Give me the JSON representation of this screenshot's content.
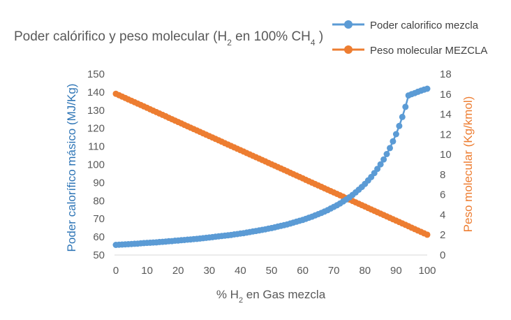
{
  "chart_data": {
    "type": "line",
    "title": {
      "text": "Poder calórifico y peso molecular (H",
      "sub1": "2",
      "mid": " en 100% CH",
      "sub2": "4",
      "end": " )"
    },
    "xlabel": {
      "text": "% H",
      "sub": "2",
      "end": " en Gas mezcla"
    },
    "ylabel_left": "Poder calorífico másico (MJ/Kg)",
    "ylabel_right": "Peso molecular (Kg/kmol)",
    "xlim": [
      0,
      100
    ],
    "ylim_left": [
      50,
      150
    ],
    "ylim_right": [
      0,
      18
    ],
    "x_ticks": [
      0,
      10,
      20,
      30,
      40,
      50,
      60,
      70,
      80,
      90,
      100
    ],
    "y_ticks_left": [
      50,
      60,
      70,
      80,
      90,
      100,
      110,
      120,
      130,
      140,
      150
    ],
    "y_ticks_right": [
      0,
      2,
      4,
      6,
      8,
      10,
      12,
      14,
      16,
      18
    ],
    "legend_position": "top-right",
    "grid": false,
    "series": [
      {
        "name": "Poder calorifico mezcla",
        "axis": "left",
        "color": "#5B9BD5",
        "x": [
          0,
          1,
          2,
          3,
          4,
          5,
          6,
          7,
          8,
          9,
          10,
          11,
          12,
          13,
          14,
          15,
          16,
          17,
          18,
          19,
          20,
          21,
          22,
          23,
          24,
          25,
          26,
          27,
          28,
          29,
          30,
          31,
          32,
          33,
          34,
          35,
          36,
          37,
          38,
          39,
          40,
          41,
          42,
          43,
          44,
          45,
          46,
          47,
          48,
          49,
          50,
          51,
          52,
          53,
          54,
          55,
          56,
          57,
          58,
          59,
          60,
          61,
          62,
          63,
          64,
          65,
          66,
          67,
          68,
          69,
          70,
          71,
          72,
          73,
          74,
          75,
          76,
          77,
          78,
          79,
          80,
          81,
          82,
          83,
          84,
          85,
          86,
          87,
          88,
          89,
          90,
          91,
          92,
          93,
          94,
          95,
          96,
          97,
          98,
          99,
          100
        ],
        "y": [
          55.6,
          55.7,
          55.8,
          55.9,
          56.0,
          56.1,
          56.2,
          56.3,
          56.5,
          56.6,
          56.7,
          56.8,
          56.9,
          57.0,
          57.2,
          57.3,
          57.4,
          57.6,
          57.7,
          57.9,
          58.0,
          58.2,
          58.3,
          58.5,
          58.6,
          58.8,
          58.9,
          59.1,
          59.3,
          59.5,
          59.7,
          59.9,
          60.1,
          60.3,
          60.5,
          60.7,
          60.9,
          61.1,
          61.4,
          61.6,
          61.9,
          62.1,
          62.4,
          62.7,
          63.0,
          63.3,
          63.6,
          63.9,
          64.2,
          64.6,
          64.9,
          65.3,
          65.7,
          66.1,
          66.5,
          66.9,
          67.4,
          67.9,
          68.4,
          68.9,
          69.4,
          70.0,
          70.6,
          71.2,
          71.9,
          72.6,
          73.3,
          74.0,
          74.8,
          75.7,
          76.6,
          77.5,
          78.5,
          79.6,
          80.7,
          81.9,
          83.2,
          84.6,
          86.1,
          87.6,
          89.3,
          91.2,
          93.1,
          95.3,
          97.6,
          100.1,
          102.8,
          105.8,
          109.1,
          112.8,
          116.8,
          121.3,
          126.3,
          131.9,
          138.2,
          138.9,
          139.5,
          140.2,
          140.8,
          141.4,
          141.9
        ]
      },
      {
        "name": "Peso molecular MEZCLA",
        "axis": "right",
        "color": "#ED7D31",
        "x": [
          0,
          1,
          2,
          3,
          4,
          5,
          6,
          7,
          8,
          9,
          10,
          11,
          12,
          13,
          14,
          15,
          16,
          17,
          18,
          19,
          20,
          21,
          22,
          23,
          24,
          25,
          26,
          27,
          28,
          29,
          30,
          31,
          32,
          33,
          34,
          35,
          36,
          37,
          38,
          39,
          40,
          41,
          42,
          43,
          44,
          45,
          46,
          47,
          48,
          49,
          50,
          51,
          52,
          53,
          54,
          55,
          56,
          57,
          58,
          59,
          60,
          61,
          62,
          63,
          64,
          65,
          66,
          67,
          68,
          69,
          70,
          71,
          72,
          73,
          74,
          75,
          76,
          77,
          78,
          79,
          80,
          81,
          82,
          83,
          84,
          85,
          86,
          87,
          88,
          89,
          90,
          91,
          92,
          93,
          94,
          95,
          96,
          97,
          98,
          99,
          100
        ],
        "y": [
          16.04,
          15.9,
          15.76,
          15.62,
          15.48,
          15.34,
          15.2,
          15.06,
          14.92,
          14.78,
          14.64,
          14.5,
          14.36,
          14.22,
          14.08,
          13.94,
          13.8,
          13.65,
          13.51,
          13.37,
          13.23,
          13.09,
          12.95,
          12.81,
          12.67,
          12.53,
          12.39,
          12.25,
          12.11,
          11.97,
          11.83,
          11.69,
          11.55,
          11.41,
          11.27,
          11.13,
          10.99,
          10.85,
          10.71,
          10.57,
          10.43,
          10.29,
          10.15,
          10.01,
          9.87,
          9.73,
          9.59,
          9.45,
          9.31,
          9.17,
          9.03,
          8.89,
          8.75,
          8.61,
          8.47,
          8.33,
          8.19,
          8.05,
          7.91,
          7.77,
          7.63,
          7.48,
          7.34,
          7.2,
          7.06,
          6.92,
          6.78,
          6.64,
          6.5,
          6.36,
          6.22,
          6.08,
          5.94,
          5.8,
          5.66,
          5.52,
          5.38,
          5.24,
          5.1,
          4.96,
          4.82,
          4.68,
          4.54,
          4.4,
          4.26,
          4.12,
          3.98,
          3.84,
          3.7,
          3.56,
          3.42,
          3.28,
          3.14,
          3.0,
          2.86,
          2.72,
          2.58,
          2.44,
          2.3,
          2.16,
          2.02
        ]
      }
    ]
  }
}
